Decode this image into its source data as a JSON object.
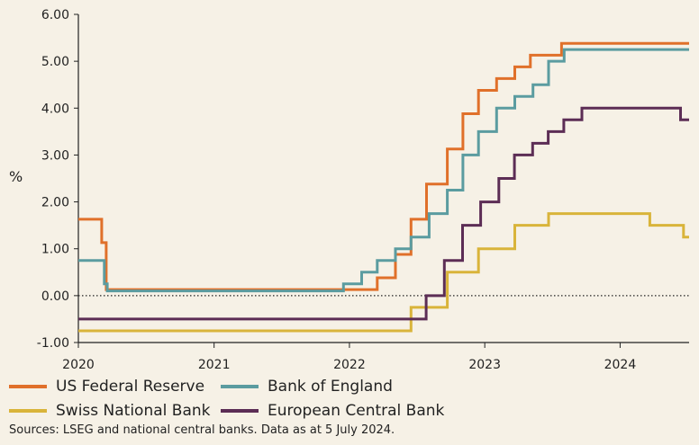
{
  "chart_data": {
    "type": "line",
    "step": true,
    "title": "",
    "xlabel": "",
    "ylabel": "%",
    "ylim": [
      -1.0,
      6.0
    ],
    "yticks": [
      "-1.00",
      "0.00",
      "1.00",
      "2.00",
      "3.00",
      "4.00",
      "5.00",
      "6.00"
    ],
    "xlim": [
      "2020-01-01",
      "2024-07-05"
    ],
    "xticks": [
      "2020",
      "2021",
      "2022",
      "2023",
      "2024"
    ],
    "zero_line": "dotted",
    "grid": false,
    "legend_position": "bottom",
    "series": [
      {
        "name": "US Federal Reserve",
        "color": "#e0702a",
        "x": [
          "2020-01-01",
          "2020-03-04",
          "2020-03-16",
          "2022-03-17",
          "2022-05-05",
          "2022-06-16",
          "2022-07-28",
          "2022-09-22",
          "2022-11-03",
          "2022-12-15",
          "2023-02-02",
          "2023-03-23",
          "2023-05-04",
          "2023-07-27",
          "2024-07-05"
        ],
        "values": [
          1.63,
          1.13,
          0.13,
          0.38,
          0.88,
          1.63,
          2.38,
          3.13,
          3.88,
          4.38,
          4.63,
          4.88,
          5.13,
          5.38,
          5.38
        ]
      },
      {
        "name": "Bank of England",
        "color": "#5b9ca0",
        "x": [
          "2020-01-01",
          "2020-03-11",
          "2020-03-19",
          "2021-12-16",
          "2022-02-03",
          "2022-03-17",
          "2022-05-05",
          "2022-06-16",
          "2022-08-04",
          "2022-09-22",
          "2022-11-03",
          "2022-12-15",
          "2023-02-02",
          "2023-03-23",
          "2023-05-11",
          "2023-06-22",
          "2023-08-03",
          "2024-07-05"
        ],
        "values": [
          0.75,
          0.25,
          0.1,
          0.25,
          0.5,
          0.75,
          1.0,
          1.25,
          1.75,
          2.25,
          3.0,
          3.5,
          4.0,
          4.25,
          4.5,
          5.0,
          5.25,
          5.25
        ]
      },
      {
        "name": "Swiss National Bank",
        "color": "#d9b43a",
        "x": [
          "2020-01-01",
          "2022-06-16",
          "2022-09-22",
          "2022-12-15",
          "2023-03-23",
          "2023-06-22",
          "2024-03-21",
          "2024-06-20",
          "2024-07-05"
        ],
        "values": [
          -0.75,
          -0.25,
          0.5,
          1.0,
          1.5,
          1.75,
          1.5,
          1.25,
          1.25
        ]
      },
      {
        "name": "European Central Bank",
        "color": "#5c2d55",
        "x": [
          "2020-01-01",
          "2022-07-27",
          "2022-09-14",
          "2022-11-02",
          "2022-12-21",
          "2023-02-08",
          "2023-03-22",
          "2023-05-10",
          "2023-06-21",
          "2023-08-02",
          "2023-09-20",
          "2024-06-12",
          "2024-07-05"
        ],
        "values": [
          -0.5,
          0.0,
          0.75,
          1.5,
          2.0,
          2.5,
          3.0,
          3.25,
          3.5,
          3.75,
          4.0,
          3.75,
          3.75
        ]
      }
    ]
  },
  "legend": {
    "items": [
      {
        "label": "US Federal Reserve",
        "color": "#e0702a"
      },
      {
        "label": "Bank of England",
        "color": "#5b9ca0"
      },
      {
        "label": "Swiss National Bank",
        "color": "#d9b43a"
      },
      {
        "label": "European Central Bank",
        "color": "#5c2d55"
      }
    ]
  },
  "source": "Sources: LSEG and national central banks. Data as at 5 July 2024."
}
